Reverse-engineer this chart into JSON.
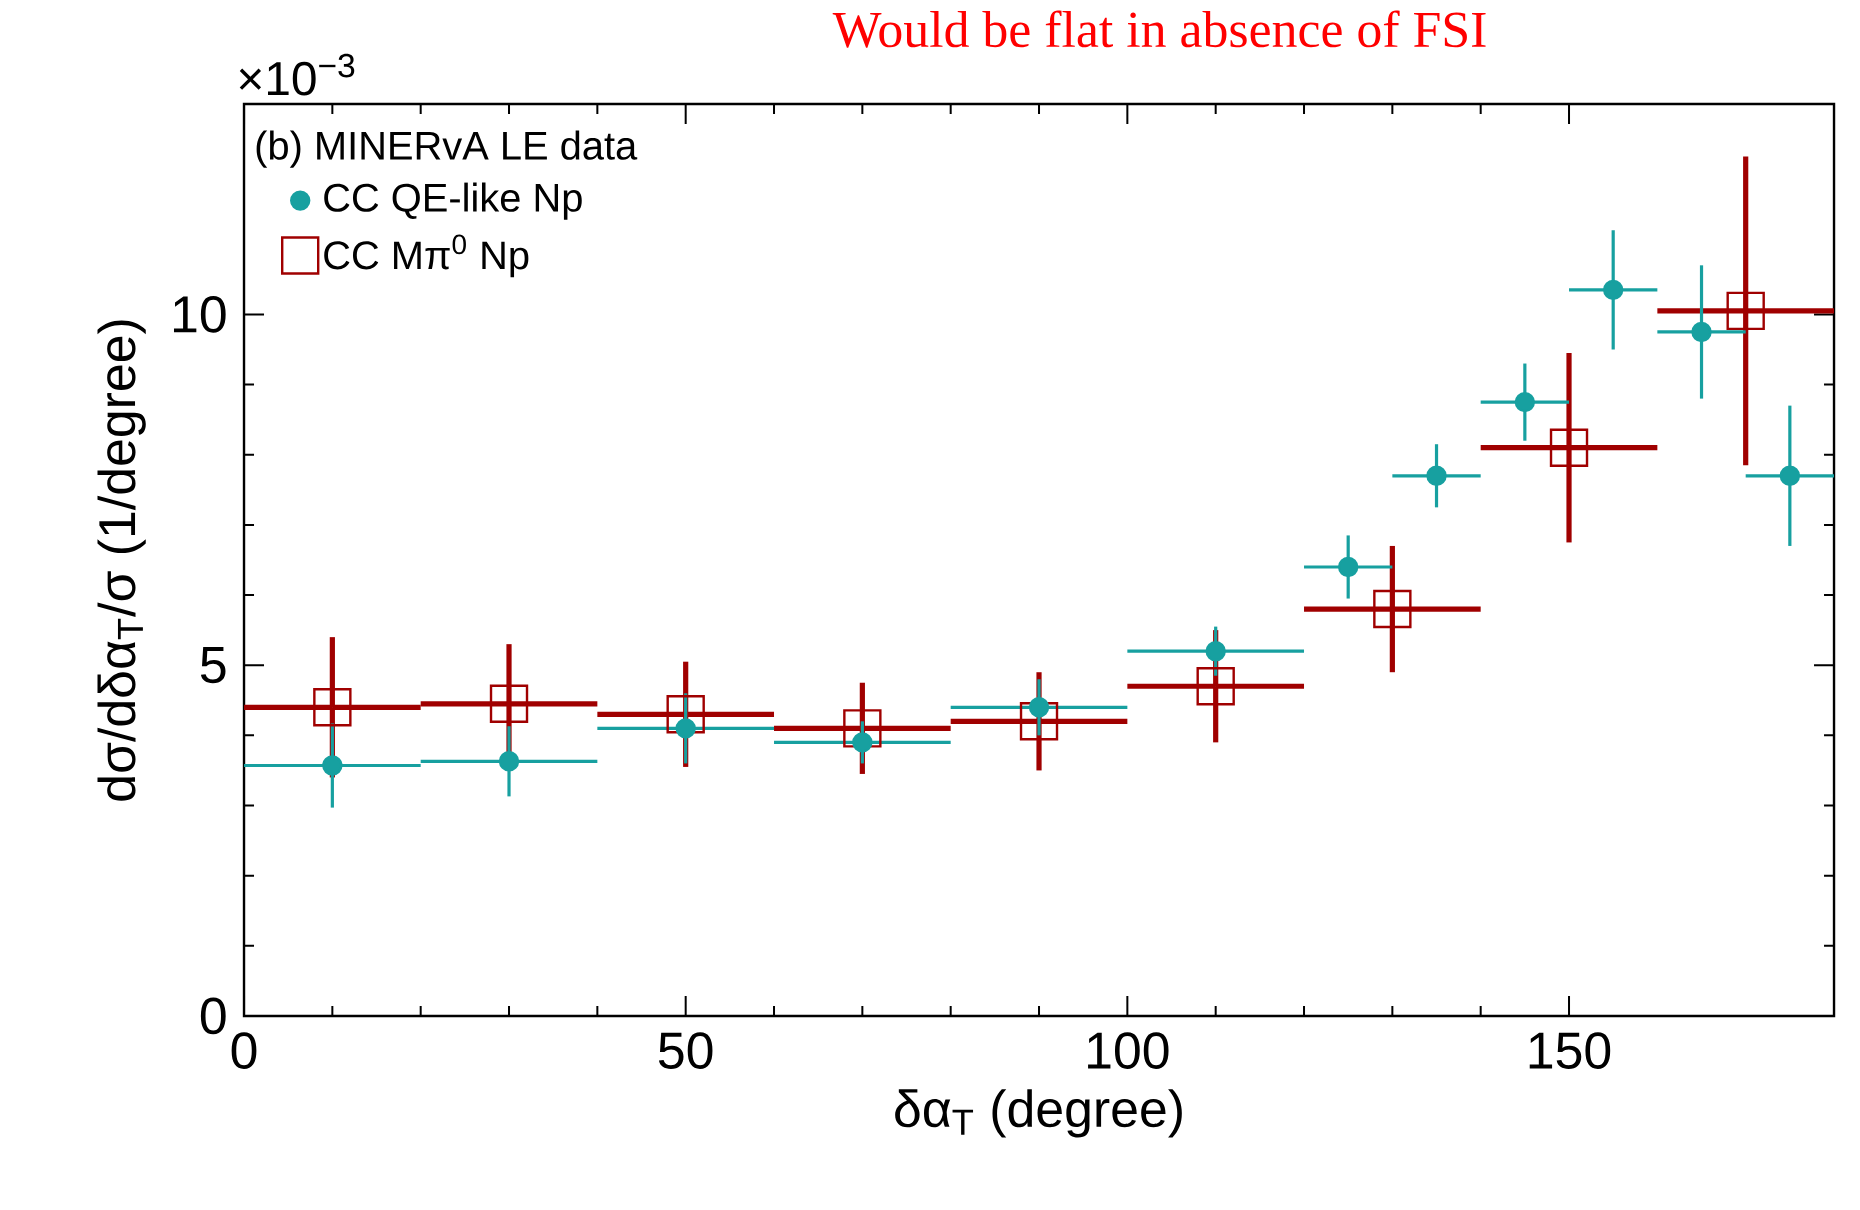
{
  "chart_data": {
    "type": "scatter",
    "title": "Would be flat in absence of FSI",
    "xlabel": "δα$_{T}$ (degree)",
    "ylabel": "dσ/dδα$_{T}$/σ (1/degree)",
    "annotations": [
      "×10$^{−3}$"
    ],
    "legend_title": "(b)  MINERvA LE data",
    "legend": "top left",
    "xlim": [
      0,
      180
    ],
    "ylim": [
      0,
      13
    ],
    "xticks": [
      0,
      50,
      100,
      150
    ],
    "yticks": [
      0,
      5,
      10
    ],
    "series": [
      {
        "name": "CC QE-like Np",
        "color": "#17a0a0",
        "marker": "circle",
        "x": [
          10,
          30,
          50,
          70,
          90,
          110,
          125,
          135,
          145,
          155,
          165,
          175
        ],
        "values": [
          3.57,
          3.63,
          4.1,
          3.9,
          4.4,
          5.2,
          6.4,
          7.7,
          8.75,
          10.35,
          9.75,
          7.7
        ],
        "xerrors": [
          10,
          10,
          10,
          10,
          10,
          10,
          5,
          5,
          5,
          5,
          5,
          5
        ],
        "errors": [
          0.6,
          0.5,
          0.5,
          0.3,
          0.4,
          0.35,
          0.45,
          0.45,
          0.55,
          0.85,
          0.95,
          1.0
        ]
      },
      {
        "name": "CC Mπ$^{0}$ Np",
        "color": "#a00000",
        "marker": "square",
        "x": [
          10,
          30,
          50,
          70,
          90,
          110,
          130,
          150,
          170
        ],
        "values": [
          4.4,
          4.45,
          4.3,
          4.1,
          4.2,
          4.7,
          5.8,
          8.1,
          10.05
        ],
        "xerrors": [
          10,
          10,
          10,
          10,
          10,
          10,
          10,
          10,
          10
        ],
        "errors": [
          1.0,
          0.85,
          0.75,
          0.65,
          0.7,
          0.8,
          0.9,
          1.35,
          2.2
        ]
      }
    ]
  }
}
